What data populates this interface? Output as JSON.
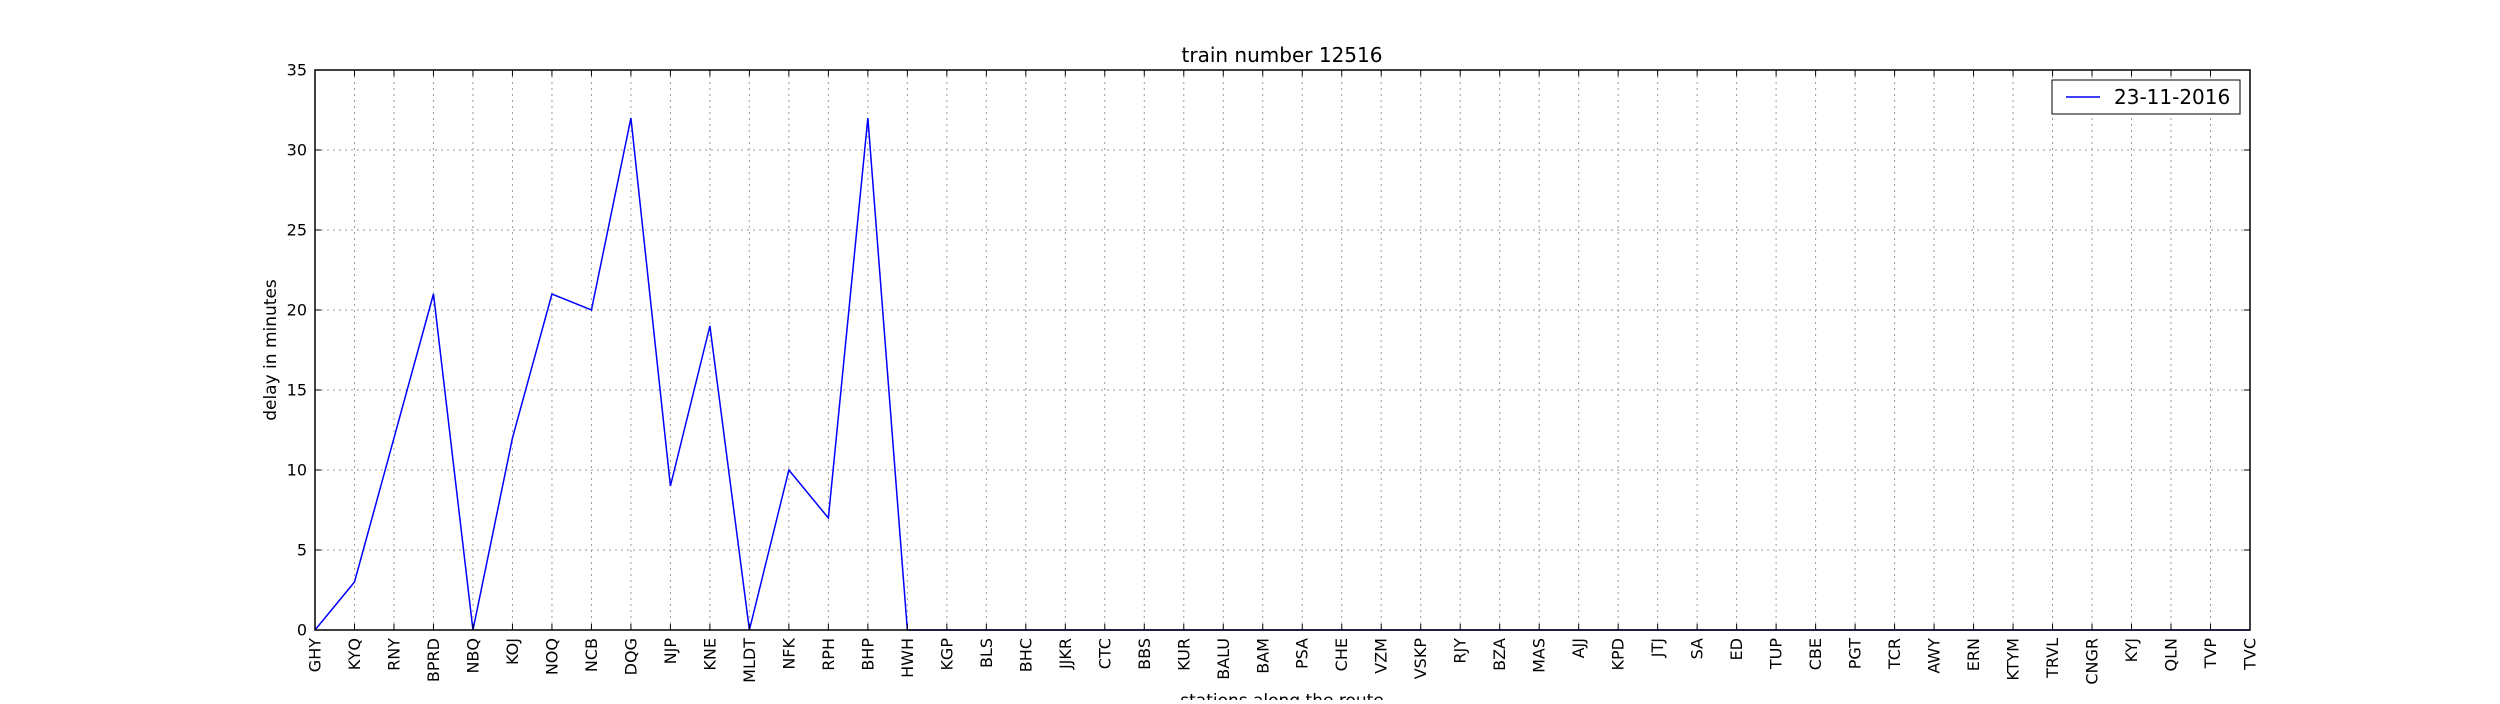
{
  "chart_data": {
    "type": "line",
    "title": "train number 12516",
    "xlabel": "stations along the route",
    "ylabel": "delay in minutes",
    "ylim": [
      0,
      35
    ],
    "yticks": [
      0,
      5,
      10,
      15,
      20,
      25,
      30,
      35
    ],
    "grid": true,
    "legend_position": "top-right",
    "categories": [
      "GHY",
      "KYQ",
      "RNY",
      "BPRD",
      "NBQ",
      "KOJ",
      "NOQ",
      "NCB",
      "DQG",
      "NJP",
      "KNE",
      "MLDT",
      "NFK",
      "RPH",
      "BHP",
      "HWH",
      "KGP",
      "BLS",
      "BHC",
      "JJKR",
      "CTC",
      "BBS",
      "KUR",
      "BALU",
      "BAM",
      "PSA",
      "CHE",
      "VZM",
      "VSKP",
      "RJY",
      "BZA",
      "MAS",
      "AJJ",
      "KPD",
      "JTJ",
      "SA",
      "ED",
      "TUP",
      "CBE",
      "PGT",
      "TCR",
      "AWY",
      "ERN",
      "KTYM",
      "TRVL",
      "CNGR",
      "KYJ",
      "QLN",
      "TVP",
      "TVC"
    ],
    "series": [
      {
        "name": "23-11-2016",
        "color": "#0000ff",
        "values": [
          0,
          3,
          12,
          21,
          0,
          12,
          21,
          20,
          32,
          9,
          19,
          0,
          10,
          7,
          32,
          0,
          0,
          0,
          0,
          0,
          0,
          0,
          0,
          0,
          0,
          0,
          0,
          0,
          0,
          0,
          0,
          0,
          0,
          0,
          0,
          0,
          0,
          0,
          0,
          0,
          0,
          0,
          0,
          0,
          0,
          0,
          0,
          0,
          0,
          0
        ]
      }
    ]
  }
}
